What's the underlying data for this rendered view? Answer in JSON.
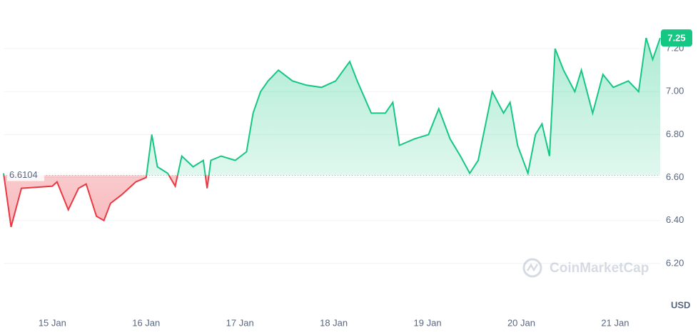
{
  "chart_data": {
    "type": "line",
    "x": [
      14.48,
      14.56,
      14.67,
      15.0,
      15.05,
      15.17,
      15.28,
      15.36,
      15.47,
      15.55,
      15.62,
      15.74,
      15.89,
      16.0,
      16.06,
      16.12,
      16.23,
      16.31,
      16.38,
      16.5,
      16.61,
      16.65,
      16.69,
      16.8,
      16.95,
      17.07,
      17.14,
      17.22,
      17.3,
      17.41,
      17.56,
      17.71,
      17.87,
      18.02,
      18.17,
      18.25,
      18.4,
      18.55,
      18.63,
      18.7,
      18.86,
      19.01,
      19.12,
      19.24,
      19.35,
      19.45,
      19.54,
      19.69,
      19.81,
      19.88,
      19.96,
      20.07,
      20.15,
      20.22,
      20.3,
      20.36,
      20.45,
      20.57,
      20.64,
      20.76,
      20.87,
      20.98,
      21.14,
      21.25,
      21.33,
      21.4,
      21.48
    ],
    "values": [
      6.62,
      6.37,
      6.55,
      6.56,
      6.58,
      6.45,
      6.55,
      6.57,
      6.42,
      6.4,
      6.48,
      6.52,
      6.58,
      6.6,
      6.8,
      6.65,
      6.62,
      6.56,
      6.7,
      6.65,
      6.68,
      6.55,
      6.68,
      6.7,
      6.68,
      6.72,
      6.9,
      7.0,
      7.05,
      7.1,
      7.05,
      7.03,
      7.02,
      7.05,
      7.14,
      7.05,
      6.9,
      6.9,
      6.95,
      6.75,
      6.78,
      6.8,
      6.92,
      6.78,
      6.7,
      6.62,
      6.68,
      7.0,
      6.9,
      6.95,
      6.75,
      6.62,
      6.8,
      6.85,
      6.7,
      7.2,
      7.1,
      7.0,
      7.1,
      6.9,
      7.08,
      7.02,
      7.05,
      7.0,
      7.25,
      7.15,
      7.25
    ],
    "baseline": 6.6104,
    "up_color": "#16c784",
    "down_color": "#ea3943",
    "xlim": [
      14.48,
      21.48
    ],
    "xticks": [
      {
        "value": 15,
        "label": "15 Jan"
      },
      {
        "value": 16,
        "label": "16 Jan"
      },
      {
        "value": 17,
        "label": "17 Jan"
      },
      {
        "value": 18,
        "label": "18 Jan"
      },
      {
        "value": 19,
        "label": "19 Jan"
      },
      {
        "value": 20,
        "label": "20 Jan"
      },
      {
        "value": 21,
        "label": "21 Jan"
      }
    ],
    "ylim": [
      5.98,
      7.41
    ],
    "yticks": [
      {
        "value": 6.2,
        "label": "6.20"
      },
      {
        "value": 6.4,
        "label": "6.40"
      },
      {
        "value": 6.6,
        "label": "6.60"
      },
      {
        "value": 6.8,
        "label": "6.80"
      },
      {
        "value": 7.0,
        "label": "7.00"
      },
      {
        "value": 7.2,
        "label": "7.20"
      }
    ],
    "currency": "USD",
    "watermark": "CoinMarketCap",
    "grid": true
  }
}
